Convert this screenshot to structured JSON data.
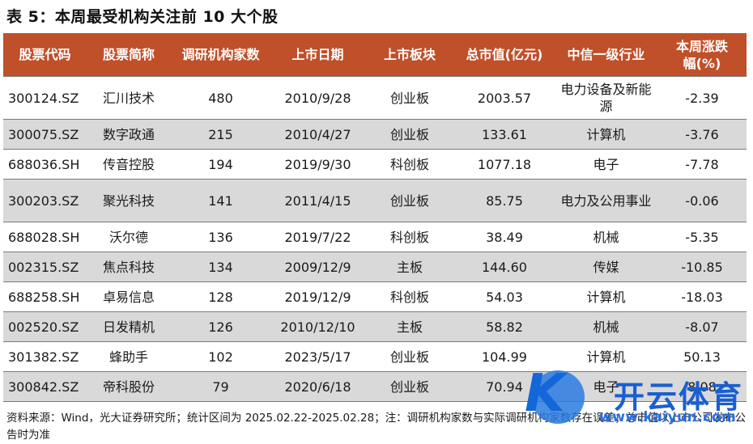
{
  "title": "表 5：本周最受机构关注前 10 大个股",
  "headers": [
    "股票代码",
    "股票简称",
    "调研机构家数",
    "上市日期",
    "上市板块",
    "总市值(亿元)",
    "中信一级行业",
    "本周涨跌幅(%)"
  ],
  "rows": [
    {
      "code": "300124.SZ",
      "name": "汇川技术",
      "count": "480",
      "date": "2010/9/28",
      "board": "创业板",
      "mcap": "2003.57",
      "industry": "电力设备及新能源",
      "change": "-2.39"
    },
    {
      "code": "300075.SZ",
      "name": "数字政通",
      "count": "215",
      "date": "2010/4/27",
      "board": "创业板",
      "mcap": "133.61",
      "industry": "计算机",
      "change": "-3.76"
    },
    {
      "code": "688036.SH",
      "name": "传音控股",
      "count": "194",
      "date": "2019/9/30",
      "board": "科创板",
      "mcap": "1077.18",
      "industry": "电子",
      "change": "-7.78"
    },
    {
      "code": "300203.SZ",
      "name": "聚光科技",
      "count": "141",
      "date": "2011/4/15",
      "board": "创业板",
      "mcap": "85.75",
      "industry": "电力及公用事业",
      "change": "-0.06"
    },
    {
      "code": "688028.SH",
      "name": "沃尔德",
      "count": "136",
      "date": "2019/7/22",
      "board": "科创板",
      "mcap": "38.49",
      "industry": "机械",
      "change": "-5.35"
    },
    {
      "code": "002315.SZ",
      "name": "焦点科技",
      "count": "134",
      "date": "2009/12/9",
      "board": "主板",
      "mcap": "144.60",
      "industry": "传媒",
      "change": "-10.85"
    },
    {
      "code": "688258.SH",
      "name": "卓易信息",
      "count": "128",
      "date": "2019/12/9",
      "board": "科创板",
      "mcap": "54.03",
      "industry": "计算机",
      "change": "-18.03"
    },
    {
      "code": "002520.SZ",
      "name": "日发精机",
      "count": "126",
      "date": "2010/12/10",
      "board": "主板",
      "mcap": "58.82",
      "industry": "机械",
      "change": "-8.07"
    },
    {
      "code": "301382.SZ",
      "name": "蜂助手",
      "count": "102",
      "date": "2023/5/17",
      "board": "创业板",
      "mcap": "104.99",
      "industry": "计算机",
      "change": "50.13"
    },
    {
      "code": "300842.SZ",
      "name": "帝科股份",
      "count": "79",
      "date": "2020/6/18",
      "board": "创业板",
      "mcap": "70.94",
      "industry": "电子",
      "change": "8.08"
    }
  ],
  "note": "资料来源：Wind，光大证券研究所；统计区间为 2025.02.22-2025.02.28；注：调研机构家数与实际调研机构家数存在误差；总市值以上市公司发布公告时为准",
  "watermark": {
    "brand": "开云体育",
    "site": "www.kaiyun.com"
  }
}
